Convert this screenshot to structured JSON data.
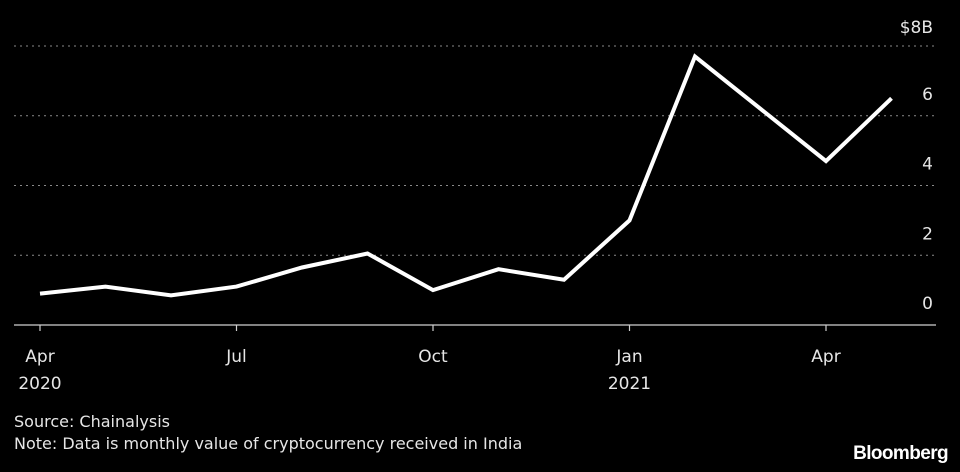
{
  "chart_data": {
    "type": "line",
    "x": [
      "2020-04",
      "2020-05",
      "2020-06",
      "2020-07",
      "2020-08",
      "2020-09",
      "2020-10",
      "2020-11",
      "2020-12",
      "2021-01",
      "2021-02",
      "2021-03",
      "2021-04",
      "2021-05"
    ],
    "series": [
      {
        "values": [
          0.9,
          1.1,
          0.85,
          1.1,
          1.65,
          2.05,
          1.0,
          1.6,
          1.3,
          3.0,
          7.7,
          6.2,
          4.7,
          6.5
        ]
      }
    ],
    "ylim": [
      0,
      8
    ],
    "y_ticks": [
      {
        "value": 0,
        "label": "0"
      },
      {
        "value": 2,
        "label": "2"
      },
      {
        "value": 4,
        "label": "4"
      },
      {
        "value": 6,
        "label": "6"
      },
      {
        "value": 8,
        "label": "$8B"
      }
    ],
    "x_ticks": [
      {
        "x": "2020-04",
        "label": "Apr",
        "year": "2020"
      },
      {
        "x": "2020-07",
        "label": "Jul",
        "year": ""
      },
      {
        "x": "2020-10",
        "label": "Oct",
        "year": ""
      },
      {
        "x": "2021-01",
        "label": "Jan",
        "year": "2021"
      },
      {
        "x": "2021-04",
        "label": "Apr",
        "year": ""
      }
    ],
    "grid": "horizontal dotted",
    "line_color": "#ffffff",
    "background": "#000000"
  },
  "footer": {
    "source": "Source: Chainalysis",
    "note": "Note: Data is monthly value of cryptocurrency received in India",
    "logo": "Bloomberg"
  }
}
